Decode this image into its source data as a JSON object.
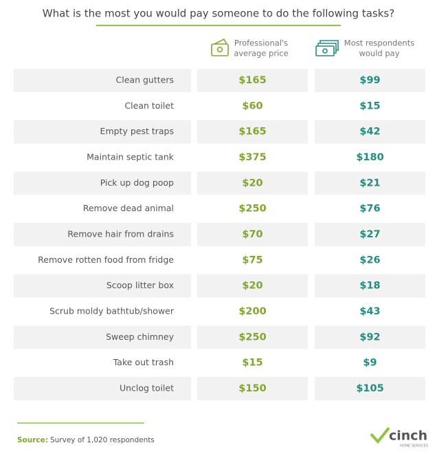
{
  "header": {
    "title": "What is the most you would pay someone to do the following tasks?"
  },
  "table": {
    "columns": [
      {
        "lines": [
          "Professional's",
          "average price"
        ]
      },
      {
        "lines": [
          "Most respondents",
          "would pay"
        ]
      }
    ],
    "rows": [
      [
        "Clean gutters",
        "$165",
        "$99"
      ],
      [
        "Clean toilet",
        "$60",
        "$15"
      ],
      [
        "Empty pest traps",
        "$165",
        "$42"
      ],
      [
        "Maintain septic tank",
        "$375",
        "$180"
      ],
      [
        "Pick up dog poop",
        "$20",
        "$21"
      ],
      [
        "Remove dead animal",
        "$250",
        "$76"
      ],
      [
        "Remove hair from drains",
        "$70",
        "$27"
      ],
      [
        "Remove rotten food from fridge",
        "$75",
        "$26"
      ],
      [
        "Scoop litter box",
        "$20",
        "$18"
      ],
      [
        "Scrub moldy bathtub/shower",
        "$200",
        "$43"
      ],
      [
        "Sweep chimney",
        "$250",
        "$92"
      ],
      [
        "Take out trash",
        "$15",
        "$9"
      ],
      [
        "Unclog toilet",
        "$150",
        "$105"
      ]
    ]
  },
  "footer": {
    "source_label": "Source:",
    "source_text": "Survey of 1,020 respondents",
    "logo": "cinch",
    "logo_sub": "HOME SERVICES"
  }
}
